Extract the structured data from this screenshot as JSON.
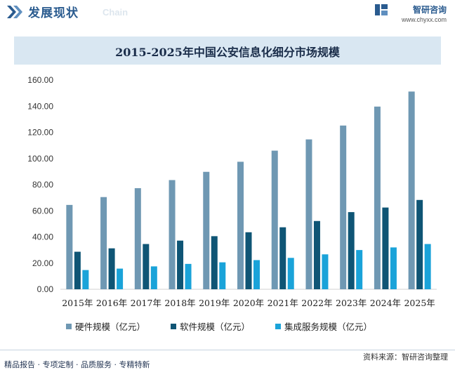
{
  "header": {
    "title": "发展现状",
    "subtitle": "Chain"
  },
  "brand": {
    "name": "智研咨询",
    "url": "www.chyxx.com"
  },
  "chart_data": {
    "type": "bar",
    "title": "2015-2025年中国公安信息化细分市场规模",
    "categories": [
      "2015年",
      "2016年",
      "2017年",
      "2018年",
      "2019年",
      "2020年",
      "2021年",
      "2022年",
      "2023年",
      "2024年",
      "2025年"
    ],
    "series": [
      {
        "name": "硬件规模（亿元）",
        "color": "#6f98b3",
        "values": [
          64.5,
          70.5,
          77.3,
          83.5,
          89.8,
          97.5,
          106.0,
          114.6,
          125.2,
          139.7,
          151.2
        ]
      },
      {
        "name": "软件规模（亿元）",
        "color": "#0f5575",
        "values": [
          28.7,
          31.3,
          34.6,
          37.2,
          40.6,
          43.6,
          47.4,
          52.2,
          59.0,
          62.5,
          68.3
        ]
      },
      {
        "name": "集成服务规模（亿元）",
        "color": "#1aa3d9",
        "values": [
          14.7,
          15.8,
          17.5,
          19.4,
          20.6,
          22.3,
          24.0,
          26.7,
          30.0,
          32.0,
          34.6
        ]
      }
    ],
    "ylim": [
      0,
      160
    ],
    "yticks": [
      "0.00",
      "20.00",
      "40.00",
      "60.00",
      "80.00",
      "100.00",
      "120.00",
      "140.00",
      "160.00"
    ],
    "xlabel": "",
    "ylabel": "",
    "grid": false,
    "legend": "bottom"
  },
  "footer": {
    "source": "资料来源：智研咨询整理",
    "tagline": "精品报告 · 专项定制 · 品质服务 · 专精特新"
  }
}
